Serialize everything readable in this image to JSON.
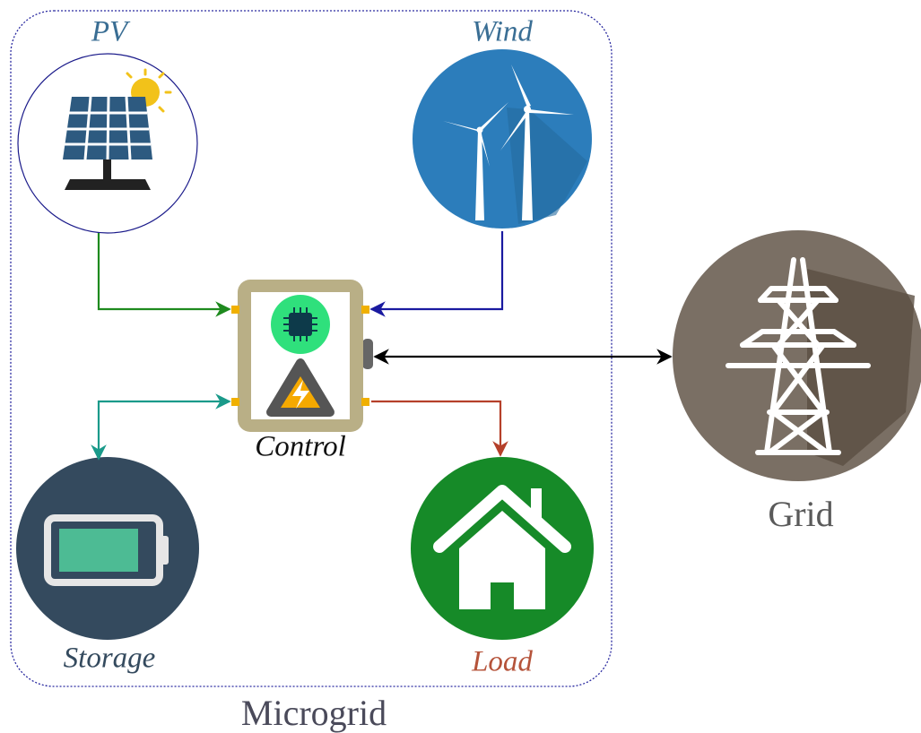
{
  "nodes": [
    {
      "label": "PV"
    },
    {
      "label": "Wind"
    },
    {
      "label": "Control"
    },
    {
      "label": "Storage"
    },
    {
      "label": "Load"
    },
    {
      "label": "Grid"
    }
  ],
  "container": {
    "label": "Microgrid"
  }
}
